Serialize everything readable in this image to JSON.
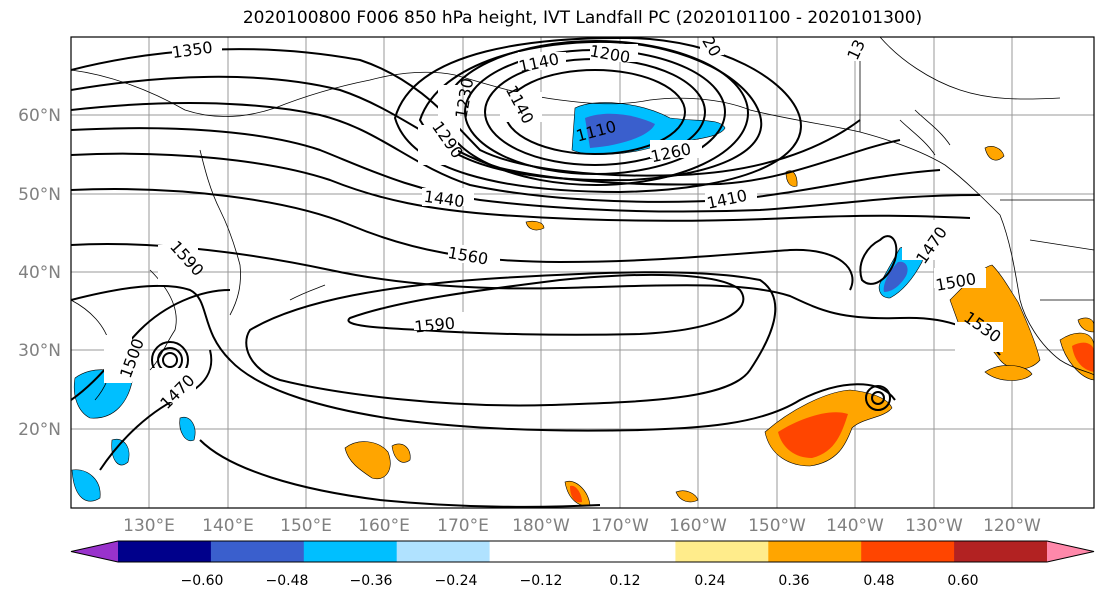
{
  "title": "2020100800 F006 850 hPa height, IVT Landfall PC (2020101100 - 2020101300)",
  "lat_labels": [
    "60°N",
    "50°N",
    "40°N",
    "30°N",
    "20°N"
  ],
  "lon_labels": [
    "130°E",
    "140°E",
    "150°E",
    "160°E",
    "170°E",
    "180°W",
    "170°W",
    "160°W",
    "150°W",
    "140°W",
    "130°W",
    "120°W"
  ],
  "contour_labels": [
    "1350",
    "1200",
    "1140",
    "1140",
    "1110",
    "1230",
    "1290",
    "1260",
    "1440",
    "1410",
    "1560",
    "1590",
    "1590",
    "1470",
    "1500",
    "1470",
    "1500",
    "1530",
    "20",
    "13"
  ],
  "colorbar": {
    "colors": [
      "#9932cc",
      "#00008b",
      "#3a5fcd",
      "#00bfff",
      "#b0e2ff",
      "#ffffff",
      "#ffffff",
      "#ffec8b",
      "#ffa500",
      "#ff4500",
      "#b22222",
      "#ff88aa"
    ],
    "tick_labels": [
      "−0.60",
      "−0.48",
      "−0.36",
      "−0.24",
      "−0.12",
      "0.12",
      "0.24",
      "0.36",
      "0.48",
      "0.60"
    ]
  }
}
